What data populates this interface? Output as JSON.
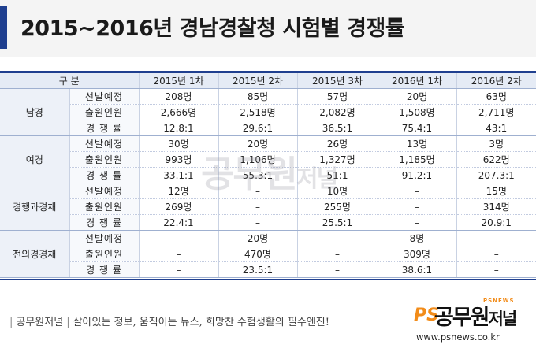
{
  "title": "2015~2016년 경남경찰청 시험별 경쟁률",
  "table": {
    "corner": "구  분",
    "columns": [
      "2015년 1차",
      "2015년 2차",
      "2015년 3차",
      "2016년 1차",
      "2016년 2차"
    ],
    "metrics": [
      "선발예정",
      "출원인원",
      "경 쟁 률"
    ],
    "groups": [
      {
        "name": "남경",
        "rows": [
          [
            "208명",
            "85명",
            "57명",
            "20명",
            "63명"
          ],
          [
            "2,666명",
            "2,518명",
            "2,082명",
            "1,508명",
            "2,711명"
          ],
          [
            "12.8:1",
            "29.6:1",
            "36.5:1",
            "75.4:1",
            "43:1"
          ]
        ]
      },
      {
        "name": "여경",
        "rows": [
          [
            "30명",
            "20명",
            "26명",
            "13명",
            "3명"
          ],
          [
            "993명",
            "1,106명",
            "1,327명",
            "1,185명",
            "622명"
          ],
          [
            "33.1:1",
            "55.3:1",
            "51:1",
            "91.2:1",
            "207.3:1"
          ]
        ]
      },
      {
        "name": "경행과경채",
        "rows": [
          [
            "12명",
            "–",
            "10명",
            "–",
            "15명"
          ],
          [
            "269명",
            "–",
            "255명",
            "–",
            "314명"
          ],
          [
            "22.4:1",
            "–",
            "25.5:1",
            "–",
            "20.9:1"
          ]
        ]
      },
      {
        "name": "전의경경채",
        "rows": [
          [
            "–",
            "20명",
            "–",
            "8명",
            "–"
          ],
          [
            "–",
            "470명",
            "–",
            "309명",
            "–"
          ],
          [
            "–",
            "23.5:1",
            "–",
            "38.6:1",
            "–"
          ]
        ]
      }
    ]
  },
  "watermark": {
    "main": "공무원",
    "small": "저널"
  },
  "footer": {
    "brand": "공무원저널",
    "slogan": "살아있는 정보, 움직이는 뉴스, 희망찬 수험생활의 필수엔진!"
  },
  "logo": {
    "ps": "PS",
    "name": "공무원",
    "suffix": "저널",
    "tag": "PSNEWS"
  },
  "url": "www.psnews.co.kr",
  "colors": {
    "accent": "#1f3f8f",
    "header_bg": "#e5ebf5",
    "logo_orange": "#f28c1a"
  }
}
